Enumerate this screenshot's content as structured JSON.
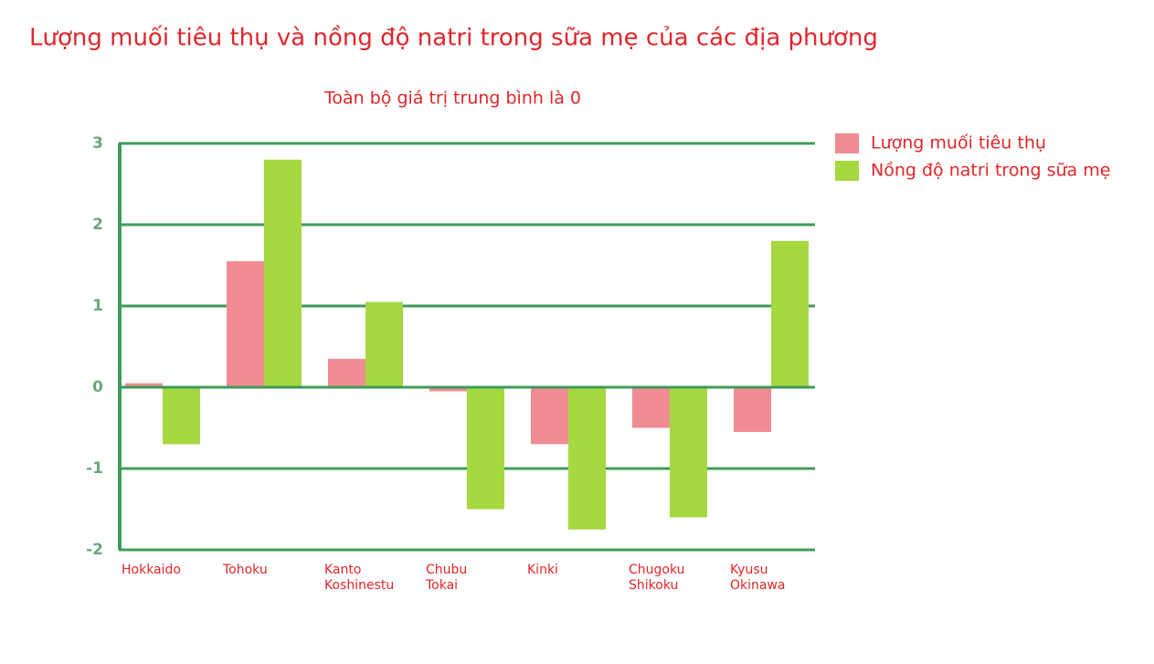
{
  "chart_data": {
    "type": "bar",
    "title": "Lượng muối tiêu thụ và nồng độ natri trong sữa mẹ của các địa phương",
    "subtitle": "Toàn bộ giá trị trung bình là 0",
    "categories": [
      "Hokkaido",
      "Tohoku",
      "Kanto\nKoshinestu",
      "Chubu\nTokai",
      "Kinki",
      "Chugoku\nShikoku",
      "Kyusu\nOkinawa"
    ],
    "series": [
      {
        "name": "Lượng muối tiêu thụ",
        "color": "#f08c94",
        "values": [
          0.05,
          1.55,
          0.35,
          -0.05,
          -0.7,
          -0.5,
          -0.55
        ]
      },
      {
        "name": "Nồng độ natri trong sữa mẹ",
        "color": "#a6d83f",
        "values": [
          -0.7,
          2.8,
          1.05,
          -1.5,
          -1.75,
          -1.6,
          1.8
        ]
      }
    ],
    "ylim": [
      -2,
      3
    ],
    "yticks": [
      -2,
      -1,
      0,
      1,
      2,
      3
    ],
    "grid": true,
    "legend": "right"
  }
}
